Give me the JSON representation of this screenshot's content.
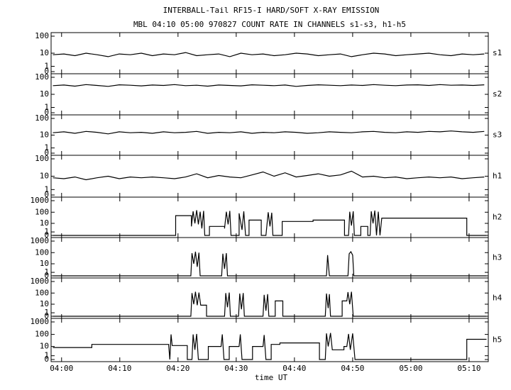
{
  "chart_data": [
    {
      "type": "line",
      "title": "INTERBALL-Tail RF15-I HARD/SOFT X-RAY EMISSION",
      "subtitle": "MBL 04:10 05:00 970827  COUNT RATE IN CHANNELS s1-s3, h1-h5",
      "yscale": "symlog",
      "xlim": [
        238.2,
        313.3
      ],
      "xticks": [
        240,
        250,
        260,
        270,
        280,
        290,
        300,
        310
      ],
      "ylim": [
        0,
        100
      ],
      "yticks": [
        0,
        1,
        10,
        100
      ],
      "x": [
        238.5,
        240.4,
        242.3,
        244.2,
        246.1,
        248,
        249.9,
        251.8,
        253.7,
        255.6,
        257.5,
        259.4,
        261.3,
        263.2,
        265.1,
        267,
        268.9,
        270.8,
        272.7,
        274.6,
        276.5,
        278.4,
        280.3,
        282.2,
        284.1,
        286,
        287.9,
        289.8,
        291.7,
        293.6,
        295.5,
        297.4,
        299.3,
        301.2,
        303.1,
        305,
        306.9,
        308.8,
        310.7,
        312.6
      ],
      "series": [
        {
          "name": "s1",
          "color": "#000000",
          "values": [
            8,
            9,
            7,
            10,
            8,
            6,
            9,
            8,
            10,
            7,
            9,
            8,
            11,
            7,
            8,
            9,
            6,
            10,
            8,
            9,
            7,
            8,
            10,
            9,
            7,
            8,
            9,
            6,
            8,
            10,
            9,
            7,
            8,
            9,
            10,
            8,
            7,
            9,
            8,
            9
          ]
        }
      ]
    },
    {
      "type": "line",
      "yscale": "symlog",
      "xlim": [
        238.2,
        313.3
      ],
      "xticks": [
        240,
        250,
        260,
        270,
        280,
        290,
        300,
        310
      ],
      "ylim": [
        0,
        100
      ],
      "yticks": [
        0,
        1,
        10,
        100
      ],
      "x": [
        238.5,
        240.4,
        242.3,
        244.2,
        246.1,
        248,
        249.9,
        251.8,
        253.7,
        255.6,
        257.5,
        259.4,
        261.3,
        263.2,
        265.1,
        267,
        268.9,
        270.8,
        272.7,
        274.6,
        276.5,
        278.4,
        280.3,
        282.2,
        284.1,
        286,
        287.9,
        289.8,
        291.7,
        293.6,
        295.5,
        297.4,
        299.3,
        301.2,
        303.1,
        305,
        306.9,
        308.8,
        310.7,
        312.6
      ],
      "series": [
        {
          "name": "s2",
          "color": "#000000",
          "values": [
            33,
            36,
            31,
            38,
            34,
            30,
            37,
            35,
            32,
            36,
            34,
            38,
            33,
            35,
            31,
            36,
            34,
            32,
            37,
            35,
            33,
            36,
            30,
            34,
            37,
            35,
            33,
            36,
            34,
            38,
            35,
            33,
            36,
            37,
            34,
            38,
            35,
            36,
            34,
            37
          ]
        }
      ]
    },
    {
      "type": "line",
      "yscale": "symlog",
      "xlim": [
        238.2,
        313.3
      ],
      "xticks": [
        240,
        250,
        260,
        270,
        280,
        290,
        300,
        310
      ],
      "ylim": [
        0,
        100
      ],
      "yticks": [
        0,
        1,
        10,
        100
      ],
      "x": [
        238.5,
        240.4,
        242.3,
        244.2,
        246.1,
        248,
        249.9,
        251.8,
        253.7,
        255.6,
        257.5,
        259.4,
        261.3,
        263.2,
        265.1,
        267,
        268.9,
        270.8,
        272.7,
        274.6,
        276.5,
        278.4,
        280.3,
        282.2,
        284.1,
        286,
        287.9,
        289.8,
        291.7,
        293.6,
        295.5,
        297.4,
        299.3,
        301.2,
        303.1,
        305,
        306.9,
        308.8,
        310.7,
        312.6
      ],
      "series": [
        {
          "name": "s3",
          "color": "#000000",
          "values": [
            14,
            16,
            13,
            17,
            15,
            12,
            16,
            14,
            15,
            13,
            16,
            14,
            15,
            17,
            13,
            15,
            14,
            16,
            13,
            15,
            14,
            16,
            15,
            13,
            14,
            16,
            15,
            14,
            16,
            17,
            15,
            14,
            16,
            15,
            17,
            16,
            18,
            16,
            15,
            17
          ]
        }
      ]
    },
    {
      "type": "line",
      "yscale": "symlog",
      "xlim": [
        238.2,
        313.3
      ],
      "xticks": [
        240,
        250,
        260,
        270,
        280,
        290,
        300,
        310
      ],
      "ylim": [
        0,
        100
      ],
      "yticks": [
        0,
        1,
        10,
        100
      ],
      "x": [
        238.5,
        240.4,
        242.3,
        244.2,
        246.1,
        248,
        249.9,
        251.8,
        253.7,
        255.6,
        257.5,
        259.4,
        261.3,
        263.2,
        265.1,
        267,
        268.9,
        270.8,
        272.7,
        274.6,
        276.5,
        278.4,
        280.3,
        282.2,
        284.1,
        286,
        287.9,
        289.8,
        291.7,
        293.6,
        295.5,
        297.4,
        299.3,
        301.2,
        303.1,
        305,
        306.9,
        308.8,
        310.7,
        312.6
      ],
      "series": [
        {
          "name": "h1",
          "color": "#000000",
          "values": [
            8,
            7,
            9,
            6,
            8,
            10,
            7,
            9,
            8,
            9,
            8,
            7,
            9,
            14,
            8,
            11,
            9,
            8,
            12,
            18,
            10,
            16,
            9,
            11,
            14,
            10,
            12,
            20,
            9,
            10,
            8,
            9,
            7,
            8,
            9,
            8,
            9,
            7,
            8,
            9
          ]
        }
      ]
    },
    {
      "type": "line",
      "yscale": "symlog",
      "xlim": [
        238.2,
        313.3
      ],
      "xticks": [
        240,
        250,
        260,
        270,
        280,
        290,
        300,
        310
      ],
      "ylim": [
        0,
        1000
      ],
      "yticks": [
        0,
        1,
        10,
        100,
        1000
      ],
      "x": [
        238.5,
        259.6,
        259.6,
        262.3,
        262.3,
        262.6,
        262.9,
        263.2,
        263.5,
        263.8,
        264.1,
        264.4,
        264.6,
        265.4,
        265.4,
        268,
        268,
        268.3,
        268.6,
        268.9,
        269.1,
        270.5,
        270.5,
        271,
        271.3,
        271.6,
        272.2,
        272.2,
        274.3,
        274.3,
        275.1,
        275.5,
        275.8,
        276.1,
        276.3,
        277.9,
        277.9,
        283.2,
        283.2,
        288.6,
        288.6,
        289.3,
        289.5,
        289.8,
        290.1,
        290.3,
        291.4,
        291.4,
        292.6,
        292.6,
        293,
        293.2,
        293.5,
        293.8,
        294.1,
        294.4,
        294.7,
        295,
        309.6,
        309.6,
        313
      ],
      "series": [
        {
          "name": "h2",
          "color": "#000000",
          "values": [
            0,
            0,
            50,
            50,
            5,
            120,
            10,
            150,
            8,
            110,
            3,
            130,
            0,
            0,
            5,
            5,
            3,
            110,
            8,
            130,
            0,
            0,
            80,
            2,
            120,
            0,
            0,
            20,
            20,
            0,
            0,
            100,
            5,
            90,
            0,
            0,
            15,
            15,
            20,
            20,
            0,
            0,
            110,
            6,
            120,
            0,
            0,
            5,
            5,
            0,
            0,
            120,
            10,
            140,
            0,
            110,
            0,
            30,
            30,
            0,
            0
          ]
        }
      ]
    },
    {
      "type": "line",
      "yscale": "symlog",
      "xlim": [
        238.2,
        313.3
      ],
      "xticks": [
        240,
        250,
        260,
        270,
        280,
        290,
        300,
        310
      ],
      "ylim": [
        0,
        1000
      ],
      "yticks": [
        0,
        1,
        10,
        100,
        1000
      ],
      "x": [
        238.5,
        262.2,
        262.4,
        262.7,
        263,
        263.3,
        263.6,
        263.8,
        267.5,
        267.7,
        268,
        268.3,
        268.5,
        285.5,
        285.7,
        286,
        289.2,
        289.4,
        289.7,
        290,
        290.2,
        313
      ],
      "series": [
        {
          "name": "h3",
          "color": "#000000",
          "values": [
            0,
            0,
            90,
            10,
            120,
            5,
            100,
            0,
            0,
            80,
            3,
            90,
            0,
            0,
            60,
            0,
            0,
            80,
            120,
            60,
            0,
            0
          ]
        }
      ]
    },
    {
      "type": "line",
      "yscale": "symlog",
      "xlim": [
        238.2,
        313.3
      ],
      "xticks": [
        240,
        250,
        260,
        270,
        280,
        290,
        300,
        310
      ],
      "ylim": [
        0,
        1000
      ],
      "yticks": [
        0,
        1,
        10,
        100,
        1000
      ],
      "x": [
        238.5,
        262.2,
        262.4,
        262.7,
        263,
        263.3,
        263.6,
        263.9,
        264.9,
        264.9,
        268,
        268.2,
        268.5,
        268.8,
        269,
        270.4,
        270.6,
        270.9,
        271.2,
        271.4,
        274.6,
        274.8,
        275.1,
        275.4,
        275.6,
        276.7,
        276.7,
        278,
        278,
        285.3,
        285.5,
        285.8,
        286,
        286.2,
        288.2,
        288.2,
        289,
        289.2,
        289.5,
        289.8,
        290.1,
        313
      ],
      "series": [
        {
          "name": "h4",
          "color": "#000000",
          "values": [
            0,
            0,
            100,
            10,
            130,
            8,
            110,
            8,
            8,
            0,
            0,
            100,
            5,
            110,
            0,
            0,
            90,
            3,
            100,
            0,
            0,
            70,
            2,
            80,
            0,
            0,
            20,
            20,
            0,
            0,
            90,
            4,
            80,
            0,
            0,
            20,
            20,
            120,
            10,
            130,
            0,
            0
          ]
        }
      ]
    },
    {
      "type": "line",
      "yscale": "symlog",
      "xlim": [
        238.2,
        313.3
      ],
      "xticks": [
        {
          "value": 240,
          "label": "04:00"
        },
        {
          "value": 250,
          "label": "04:10"
        },
        {
          "value": 260,
          "label": "04:20"
        },
        {
          "value": 270,
          "label": "04:30"
        },
        {
          "value": 280,
          "label": "04:40"
        },
        {
          "value": 290,
          "label": "04:50"
        },
        {
          "value": 300,
          "label": "05:00"
        },
        {
          "value": 310,
          "label": "05:10"
        }
      ],
      "xlabel": "time UT",
      "ylim": [
        0,
        1000
      ],
      "yticks": [
        0,
        1,
        10,
        100,
        1000
      ],
      "x": [
        238.5,
        245.2,
        245.2,
        258.4,
        258.4,
        258.6,
        258.8,
        259,
        261.6,
        261.6,
        262.4,
        262.6,
        262.9,
        263.2,
        263.5,
        265.2,
        265.2,
        267.4,
        267.6,
        267.9,
        268.8,
        268.8,
        270.5,
        270.7,
        271,
        272.8,
        272.8,
        274.6,
        274.8,
        275.1,
        276,
        276,
        277.5,
        277.5,
        284.3,
        284.3,
        285.3,
        285.5,
        285.8,
        286.2,
        286.5,
        288.5,
        288.5,
        289,
        289.3,
        289.6,
        290,
        290.4,
        309.6,
        309.6,
        313
      ],
      "series": [
        {
          "name": "h5",
          "color": "#000000",
          "values": [
            8,
            8,
            15,
            15,
            12,
            0,
            100,
            12,
            12,
            0,
            0,
            100,
            5,
            110,
            0,
            0,
            10,
            10,
            100,
            0,
            0,
            10,
            10,
            100,
            0,
            0,
            10,
            10,
            90,
            0,
            0,
            15,
            15,
            20,
            20,
            0,
            0,
            120,
            10,
            130,
            5,
            5,
            10,
            10,
            110,
            5,
            120,
            0,
            0,
            40,
            40
          ]
        }
      ]
    }
  ]
}
